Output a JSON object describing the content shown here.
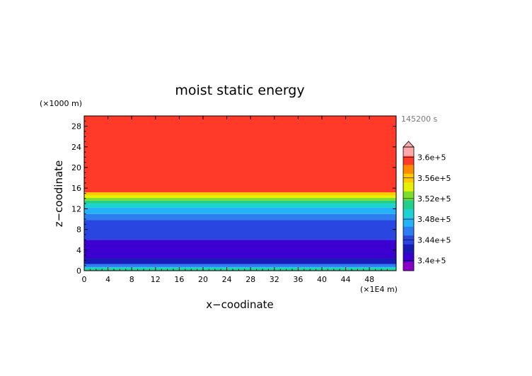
{
  "chart_data": {
    "type": "heatmap",
    "title": "moist static energy",
    "xlabel": "x−coodinate",
    "ylabel": "z−coodinate",
    "x_unit": "(×1E4 m)",
    "y_unit": "(×1000 m)",
    "time_label": "145200 s",
    "xlim": [
      0,
      52.5
    ],
    "ylim": [
      0,
      30
    ],
    "x_ticks": [
      "0",
      "4",
      "8",
      "12",
      "16",
      "20",
      "24",
      "28",
      "32",
      "36",
      "40",
      "44",
      "48"
    ],
    "y_ticks": [
      "0",
      "4",
      "8",
      "12",
      "16",
      "20",
      "24",
      "28"
    ],
    "colorbar": {
      "min": 338000.0,
      "max": 362000.0,
      "step": 2000.0,
      "labels": [
        "3.4e+5",
        "3.44e+5",
        "3.48e+5",
        "3.52e+5",
        "3.56e+5",
        "3.6e+5"
      ],
      "colors": [
        "#8a00c8",
        "#3b00d0",
        "#1a1ab8",
        "#2a46e0",
        "#2d7ef0",
        "#26b2f8",
        "#1ed2d2",
        "#22d08a",
        "#7ade2e",
        "#e6f000",
        "#ffc800",
        "#ff8c00",
        "#ff3a28",
        "#ffaaaa"
      ]
    },
    "bands": [
      {
        "z0": 0,
        "z1": 0.35,
        "value": 353000.0
      },
      {
        "z0": 0.35,
        "z1": 0.7,
        "value": 350000.0
      },
      {
        "z0": 0.7,
        "z1": 1.3,
        "value": 346000.0
      },
      {
        "z0": 1.3,
        "z1": 2.4,
        "value": 343000.0
      },
      {
        "z0": 2.4,
        "z1": 6.0,
        "value": 341000.0
      },
      {
        "z0": 6.0,
        "z1": 9.8,
        "value": 344000.0
      },
      {
        "z0": 9.8,
        "z1": 11.0,
        "value": 346000.0
      },
      {
        "z0": 11.0,
        "z1": 12.2,
        "value": 348000.0
      },
      {
        "z0": 12.2,
        "z1": 13.0,
        "value": 350000.0
      },
      {
        "z0": 13.0,
        "z1": 13.6,
        "value": 352000.0
      },
      {
        "z0": 13.6,
        "z1": 14.1,
        "value": 354000.0
      },
      {
        "z0": 14.1,
        "z1": 14.6,
        "value": 356000.0
      },
      {
        "z0": 14.6,
        "z1": 15.2,
        "value": 359000.0
      },
      {
        "z0": 15.2,
        "z1": 30.0,
        "value": 362000.0
      }
    ]
  }
}
